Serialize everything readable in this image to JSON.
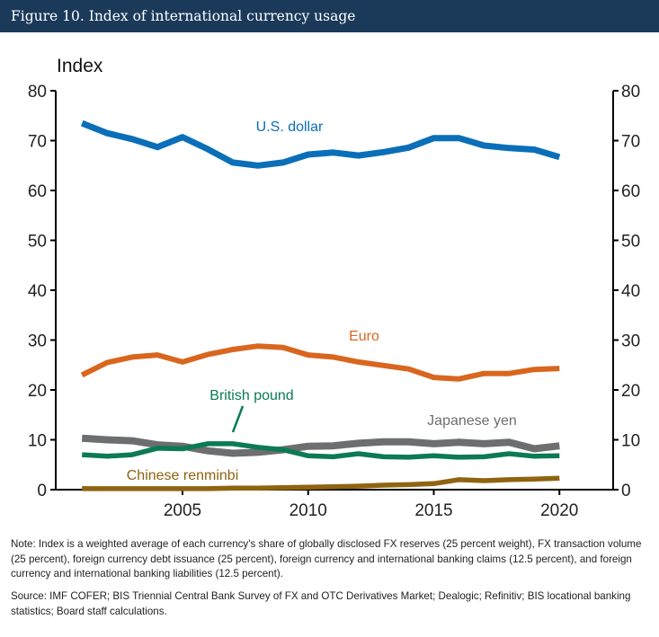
{
  "header": {
    "title": "Figure 10. Index of international currency usage"
  },
  "chart_data": {
    "type": "line",
    "title": "Figure 10. Index of international currency usage",
    "ylabel": "Index",
    "xlabel": "",
    "ylim": [
      0,
      80
    ],
    "yticks": [
      0,
      10,
      20,
      30,
      40,
      50,
      60,
      70,
      80
    ],
    "xticks": [
      2005,
      2010,
      2015,
      2020
    ],
    "xlim": [
      2000,
      2022
    ],
    "grid": false,
    "x": [
      2001,
      2002,
      2003,
      2004,
      2005,
      2006,
      2007,
      2008,
      2009,
      2010,
      2011,
      2012,
      2013,
      2014,
      2015,
      2016,
      2017,
      2018,
      2019,
      2020
    ],
    "series": [
      {
        "name": "U.S. dollar",
        "color": "#0a6fb8",
        "values": [
          73.5,
          71.5,
          70.3,
          68.7,
          70.7,
          68.3,
          65.6,
          65.0,
          65.6,
          67.2,
          67.6,
          67.0,
          67.7,
          68.6,
          70.5,
          70.5,
          69.0,
          68.5,
          68.2,
          66.7
        ]
      },
      {
        "name": "Euro",
        "color": "#d9661e",
        "values": [
          23.0,
          25.5,
          26.6,
          27.0,
          25.6,
          27.1,
          28.1,
          28.8,
          28.5,
          27.0,
          26.6,
          25.6,
          24.9,
          24.2,
          22.5,
          22.2,
          23.3,
          23.3,
          24.1,
          24.3
        ]
      },
      {
        "name": "Japanese yen",
        "color": "#6d6e70",
        "values": [
          10.3,
          10.0,
          9.8,
          9.0,
          8.7,
          7.8,
          7.3,
          7.5,
          8.0,
          8.7,
          8.8,
          9.3,
          9.6,
          9.6,
          9.2,
          9.5,
          9.2,
          9.5,
          8.2,
          8.8
        ]
      },
      {
        "name": "British pound",
        "color": "#0b7a55",
        "values": [
          7.0,
          6.7,
          7.0,
          8.3,
          8.2,
          9.2,
          9.2,
          8.5,
          8.0,
          6.8,
          6.6,
          7.2,
          6.6,
          6.5,
          6.8,
          6.5,
          6.6,
          7.2,
          6.7,
          6.8
        ]
      },
      {
        "name": "Chinese renminbi",
        "color": "#8f6410",
        "values": [
          0.2,
          0.2,
          0.2,
          0.2,
          0.2,
          0.2,
          0.3,
          0.3,
          0.4,
          0.5,
          0.6,
          0.7,
          0.9,
          1.0,
          1.2,
          2.0,
          1.8,
          2.0,
          2.1,
          2.3
        ]
      }
    ]
  },
  "notes": {
    "note": "Note: Index is a weighted average of each currency's share of globally disclosed FX reserves (25 percent weight), FX transaction volume (25 percent), foreign currency debt issuance (25 percent), foreign currency and international banking claims (12.5 percent), and foreign currency and international banking liabilities (12.5 percent).",
    "source": "Source: IMF COFER; BIS Triennial Central Bank Survey of FX and OTC Derivatives Market; Dealogic; Refinitiv; BIS locational banking statistics; Board staff calculations."
  }
}
